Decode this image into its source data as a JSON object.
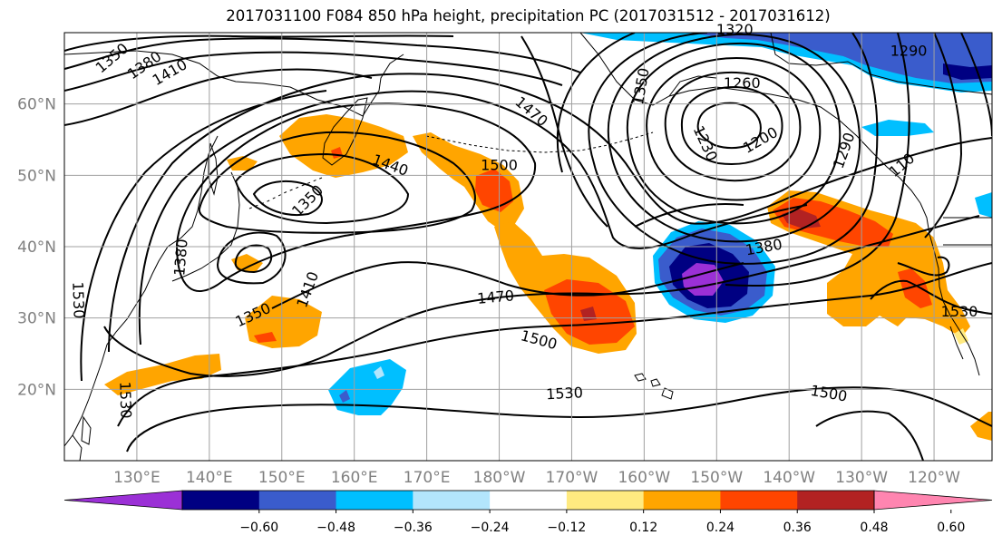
{
  "title": "2017031100 F084 850 hPa height, precipitation PC (2017031512 - 2017031612)",
  "map": {
    "projection": "cylindrical",
    "lon_range": [
      120,
      248
    ],
    "lat_range": [
      10,
      70
    ],
    "lat_ticks": [
      {
        "value": 60,
        "label": "60°N"
      },
      {
        "value": 50,
        "label": "50°N"
      },
      {
        "value": 40,
        "label": "40°N"
      },
      {
        "value": 30,
        "label": "30°N"
      },
      {
        "value": 20,
        "label": "20°N"
      }
    ],
    "lon_ticks": [
      {
        "value": 130,
        "label": "130°E"
      },
      {
        "value": 140,
        "label": "140°E"
      },
      {
        "value": 150,
        "label": "150°E"
      },
      {
        "value": 160,
        "label": "160°E"
      },
      {
        "value": 170,
        "label": "170°E"
      },
      {
        "value": 180,
        "label": "180°W"
      },
      {
        "value": 190,
        "label": "170°W"
      },
      {
        "value": 200,
        "label": "160°W"
      },
      {
        "value": 210,
        "label": "150°W"
      },
      {
        "value": 220,
        "label": "140°W"
      },
      {
        "value": 230,
        "label": "130°W"
      },
      {
        "value": 240,
        "label": "120°W"
      }
    ],
    "gridlines": true,
    "contour_labels": [
      {
        "text": "1350",
        "lon": 126.5,
        "lat": 66.5,
        "angle": -40
      },
      {
        "text": "1380",
        "lon": 131,
        "lat": 65.5,
        "angle": -35
      },
      {
        "text": "1410",
        "lon": 134.5,
        "lat": 64.5,
        "angle": -30
      },
      {
        "text": "1440",
        "lon": 165,
        "lat": 51.5,
        "angle": 20
      },
      {
        "text": "1350",
        "lon": 153.5,
        "lat": 46.5,
        "angle": -45
      },
      {
        "text": "1380",
        "lon": 136,
        "lat": 38.5,
        "angle": -85
      },
      {
        "text": "1410",
        "lon": 153.5,
        "lat": 34.0,
        "angle": -70
      },
      {
        "text": "1350",
        "lon": 146,
        "lat": 30.5,
        "angle": -25
      },
      {
        "text": "1530",
        "lon": 122,
        "lat": 32.5,
        "angle": 88
      },
      {
        "text": "1530",
        "lon": 128.5,
        "lat": 18.5,
        "angle": 88
      },
      {
        "text": "1470",
        "lon": 184.5,
        "lat": 59.0,
        "angle": 40
      },
      {
        "text": "1500",
        "lon": 180,
        "lat": 51.5,
        "angle": 0
      },
      {
        "text": "1350",
        "lon": 199.5,
        "lat": 62.5,
        "angle": -80
      },
      {
        "text": "1260",
        "lon": 213.5,
        "lat": 63.0,
        "angle": 0
      },
      {
        "text": "1230",
        "lon": 208.5,
        "lat": 54.5,
        "angle": 65
      },
      {
        "text": "1200",
        "lon": 216,
        "lat": 55.0,
        "angle": -30
      },
      {
        "text": "1290",
        "lon": 227.5,
        "lat": 53.5,
        "angle": -70
      },
      {
        "text": "1290",
        "lon": 236.5,
        "lat": 67.5,
        "angle": 0
      },
      {
        "text": "1320",
        "lon": 212.5,
        "lat": 70.5,
        "angle": 0
      },
      {
        "text": "110",
        "lon": 235.5,
        "lat": 51.5,
        "angle": -40
      },
      {
        "text": "1380",
        "lon": 216.5,
        "lat": 40.0,
        "angle": -10
      },
      {
        "text": "1470",
        "lon": 179.5,
        "lat": 33.0,
        "angle": -5
      },
      {
        "text": "1500",
        "lon": 185.5,
        "lat": 27.0,
        "angle": 15
      },
      {
        "text": "1530",
        "lon": 189,
        "lat": 19.5,
        "angle": -3
      },
      {
        "text": "1500",
        "lon": 225.5,
        "lat": 19.5,
        "angle": 10
      },
      {
        "text": "1530",
        "lon": 243.5,
        "lat": 31.0,
        "angle": 0
      }
    ]
  },
  "colorbar": {
    "levels": [
      -0.6,
      -0.48,
      -0.36,
      -0.24,
      -0.12,
      0.12,
      0.24,
      0.36,
      0.48,
      0.6
    ],
    "tick_labels": [
      "−0.60",
      "−0.48",
      "−0.36",
      "−0.24",
      "−0.12",
      "0.12",
      "0.24",
      "0.36",
      "0.48",
      "0.60"
    ],
    "colors": [
      "#9b30d6",
      "#000082",
      "#3a5ccc",
      "#00bfff",
      "#b3e5fc",
      "#ffffff",
      "#ffea80",
      "#ffa500",
      "#ff4500",
      "#b22222",
      "#ff85b0"
    ],
    "extend": "both"
  }
}
